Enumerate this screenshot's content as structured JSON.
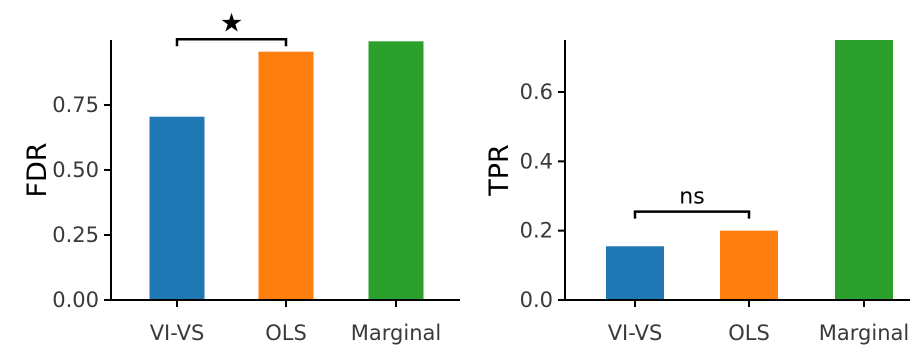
{
  "chart_data": [
    {
      "type": "bar",
      "categories": [
        "VI-VS",
        "OLS",
        "Marginal"
      ],
      "values": [
        0.705,
        0.955,
        0.995
      ],
      "colors": [
        "#1f77b4",
        "#ff7f0e",
        "#2ca02c"
      ],
      "ylabel": "FDR",
      "ylim": [
        0,
        1.0
      ],
      "yticks": [
        "0.00",
        "0.25",
        "0.50",
        "0.75"
      ],
      "ytick_values": [
        0,
        0.25,
        0.5,
        0.75
      ],
      "grid": false,
      "annotation": {
        "text": "★",
        "from": 0,
        "to": 1,
        "bracket_y": 0.995
      }
    },
    {
      "type": "bar",
      "categories": [
        "VI-VS",
        "OLS",
        "Marginal"
      ],
      "values": [
        0.155,
        0.2,
        0.75
      ],
      "colors": [
        "#1f77b4",
        "#ff7f0e",
        "#2ca02c"
      ],
      "ylabel": "TPR",
      "ylim": [
        0,
        0.75
      ],
      "yticks": [
        "0.0",
        "0.2",
        "0.4",
        "0.6"
      ],
      "ytick_values": [
        0,
        0.2,
        0.4,
        0.6
      ],
      "grid": false,
      "annotation": {
        "text": "ns",
        "from": 0,
        "to": 1,
        "bracket_y": 0.255
      }
    }
  ]
}
